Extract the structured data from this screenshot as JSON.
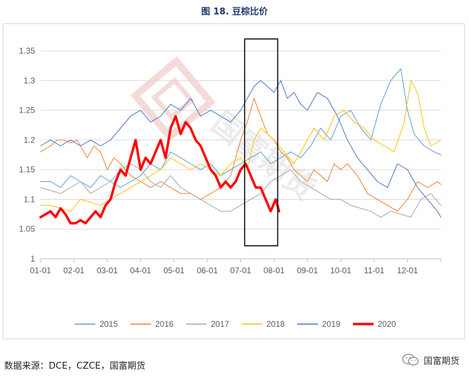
{
  "figure": {
    "title": "图 18.  豆棕比价",
    "source": "数据来源：DCE，CZCE，国富期货",
    "brand": "国富期货",
    "watermark": "国富期货"
  },
  "chart_data": {
    "type": "line",
    "title": "",
    "xlabel": "",
    "ylabel": "",
    "ylim": [
      1,
      1.35
    ],
    "yticks": [
      1,
      1.05,
      1.1,
      1.15,
      1.2,
      1.25,
      1.3,
      1.35
    ],
    "ytick_labels": [
      "1",
      "1.05",
      "1.1",
      "1.15",
      "1.2",
      "1.25",
      "1.3",
      "1.35"
    ],
    "x_unit": "month",
    "xlim": [
      0,
      12
    ],
    "xticks": [
      "01-01",
      "02-01",
      "03-01",
      "04-01",
      "05-01",
      "06-01",
      "07-01",
      "08-01",
      "09-01",
      "10-01",
      "11-01",
      "12-01"
    ],
    "grid": {
      "horizontal": true,
      "vertical": false
    },
    "legend_position": "bottom",
    "highlight_box": {
      "x_range": [
        6.12,
        7.11
      ],
      "y_range": [
        1.022,
        1.37
      ]
    },
    "series": [
      {
        "name": "2015",
        "color": "#5b9bd5",
        "width": 1,
        "x": [
          0.0,
          0.3,
          0.6,
          0.9,
          1.2,
          1.5,
          1.8,
          2.1,
          2.4,
          2.7,
          3.0,
          3.3,
          3.6,
          3.9,
          4.2,
          4.5,
          4.8,
          5.1,
          5.4,
          5.7,
          6.0,
          6.3,
          6.6,
          6.9,
          7.2,
          7.5,
          7.8,
          8.1,
          8.4,
          8.7,
          9.0,
          9.3,
          9.6,
          9.9,
          10.2,
          10.5,
          10.8,
          11.0,
          11.2,
          11.5,
          11.8,
          12.0
        ],
        "y": [
          1.13,
          1.13,
          1.12,
          1.14,
          1.13,
          1.12,
          1.14,
          1.13,
          1.12,
          1.13,
          1.14,
          1.16,
          1.15,
          1.18,
          1.17,
          1.16,
          1.15,
          1.16,
          1.14,
          1.15,
          1.16,
          1.17,
          1.18,
          1.16,
          1.17,
          1.18,
          1.17,
          1.19,
          1.22,
          1.2,
          1.24,
          1.25,
          1.22,
          1.2,
          1.26,
          1.3,
          1.32,
          1.25,
          1.21,
          1.19,
          1.18,
          1.175
        ]
      },
      {
        "name": "2016",
        "color": "#ed7d31",
        "width": 1,
        "x": [
          0.0,
          0.3,
          0.5,
          0.7,
          0.9,
          1.1,
          1.4,
          1.6,
          1.8,
          2.0,
          2.2,
          2.4,
          2.7,
          3.0,
          3.3,
          3.6,
          3.9,
          4.2,
          4.5,
          4.8,
          5.1,
          5.4,
          5.7,
          6.0,
          6.2,
          6.4,
          6.6,
          6.8,
          7.0,
          7.2,
          7.4,
          7.6,
          7.8,
          8.0,
          8.2,
          8.4,
          8.6,
          8.8,
          9.0,
          9.2,
          9.5,
          9.8,
          10.1,
          10.4,
          10.7,
          11.0,
          11.3,
          11.6,
          11.9,
          12.0
        ],
        "y": [
          1.18,
          1.19,
          1.2,
          1.2,
          1.195,
          1.2,
          1.17,
          1.19,
          1.18,
          1.15,
          1.17,
          1.16,
          1.14,
          1.13,
          1.12,
          1.13,
          1.12,
          1.11,
          1.11,
          1.1,
          1.11,
          1.12,
          1.14,
          1.2,
          1.23,
          1.27,
          1.24,
          1.21,
          1.2,
          1.18,
          1.17,
          1.15,
          1.14,
          1.13,
          1.15,
          1.14,
          1.13,
          1.16,
          1.15,
          1.16,
          1.14,
          1.11,
          1.1,
          1.09,
          1.08,
          1.1,
          1.13,
          1.12,
          1.13,
          1.125
        ]
      },
      {
        "name": "2017",
        "color": "#a5a5a5",
        "width": 1,
        "x": [
          0.0,
          0.3,
          0.6,
          0.9,
          1.2,
          1.5,
          1.8,
          2.1,
          2.4,
          2.7,
          3.0,
          3.3,
          3.6,
          3.9,
          4.2,
          4.5,
          4.8,
          5.1,
          5.4,
          5.7,
          6.0,
          6.3,
          6.6,
          6.9,
          7.2,
          7.5,
          7.8,
          8.1,
          8.4,
          8.7,
          9.0,
          9.3,
          9.6,
          9.9,
          10.2,
          10.5,
          10.8,
          11.1,
          11.4,
          11.7,
          12.0
        ],
        "y": [
          1.12,
          1.115,
          1.11,
          1.12,
          1.13,
          1.11,
          1.12,
          1.13,
          1.15,
          1.16,
          1.15,
          1.13,
          1.12,
          1.14,
          1.12,
          1.11,
          1.1,
          1.09,
          1.08,
          1.08,
          1.09,
          1.1,
          1.11,
          1.13,
          1.14,
          1.15,
          1.13,
          1.12,
          1.11,
          1.1,
          1.1,
          1.09,
          1.085,
          1.08,
          1.07,
          1.08,
          1.075,
          1.07,
          1.1,
          1.11,
          1.09
        ]
      },
      {
        "name": "2018",
        "color": "#ffc000",
        "width": 1,
        "x": [
          0.0,
          0.3,
          0.6,
          0.9,
          1.2,
          1.5,
          1.8,
          2.1,
          2.4,
          2.7,
          3.0,
          3.3,
          3.6,
          3.9,
          4.2,
          4.5,
          4.8,
          5.1,
          5.4,
          5.7,
          6.0,
          6.2,
          6.4,
          6.6,
          6.8,
          7.0,
          7.3,
          7.6,
          7.9,
          8.2,
          8.5,
          8.8,
          9.1,
          9.4,
          9.7,
          10.0,
          10.3,
          10.6,
          10.9,
          11.1,
          11.3,
          11.5,
          11.7,
          12.0
        ],
        "y": [
          1.09,
          1.09,
          1.085,
          1.08,
          1.1,
          1.095,
          1.09,
          1.1,
          1.11,
          1.12,
          1.13,
          1.14,
          1.15,
          1.17,
          1.16,
          1.15,
          1.16,
          1.15,
          1.14,
          1.16,
          1.17,
          1.15,
          1.2,
          1.22,
          1.21,
          1.2,
          1.18,
          1.16,
          1.19,
          1.22,
          1.2,
          1.24,
          1.25,
          1.23,
          1.22,
          1.2,
          1.19,
          1.18,
          1.23,
          1.3,
          1.28,
          1.22,
          1.19,
          1.2
        ]
      },
      {
        "name": "2019",
        "color": "#4472c4",
        "width": 1,
        "x": [
          0.0,
          0.3,
          0.6,
          0.9,
          1.2,
          1.5,
          1.8,
          2.1,
          2.4,
          2.7,
          3.0,
          3.3,
          3.6,
          3.9,
          4.2,
          4.5,
          4.8,
          5.1,
          5.4,
          5.7,
          6.0,
          6.2,
          6.4,
          6.6,
          6.8,
          7.0,
          7.2,
          7.4,
          7.6,
          7.8,
          8.0,
          8.3,
          8.6,
          8.9,
          9.2,
          9.5,
          9.8,
          10.1,
          10.4,
          10.7,
          11.0,
          11.3,
          11.6,
          11.9,
          12.0
        ],
        "y": [
          1.19,
          1.2,
          1.19,
          1.2,
          1.19,
          1.2,
          1.19,
          1.2,
          1.22,
          1.24,
          1.25,
          1.23,
          1.24,
          1.26,
          1.25,
          1.27,
          1.24,
          1.25,
          1.24,
          1.23,
          1.25,
          1.27,
          1.29,
          1.3,
          1.29,
          1.28,
          1.3,
          1.27,
          1.28,
          1.26,
          1.25,
          1.28,
          1.27,
          1.24,
          1.2,
          1.17,
          1.15,
          1.13,
          1.12,
          1.16,
          1.15,
          1.12,
          1.1,
          1.08,
          1.07
        ]
      },
      {
        "name": "2020",
        "color": "#ff0000",
        "width": 3.5,
        "x": [
          0.0,
          0.15,
          0.3,
          0.45,
          0.6,
          0.75,
          0.9,
          1.05,
          1.2,
          1.35,
          1.5,
          1.65,
          1.8,
          1.95,
          2.1,
          2.25,
          2.4,
          2.55,
          2.7,
          2.85,
          3.0,
          3.15,
          3.3,
          3.45,
          3.6,
          3.75,
          3.9,
          4.05,
          4.2,
          4.35,
          4.5,
          4.65,
          4.8,
          4.95,
          5.1,
          5.25,
          5.4,
          5.55,
          5.7,
          5.85,
          6.0,
          6.15,
          6.3,
          6.45,
          6.6,
          6.75,
          6.9,
          7.05,
          7.15
        ],
        "y": [
          1.07,
          1.075,
          1.08,
          1.07,
          1.085,
          1.075,
          1.06,
          1.06,
          1.065,
          1.06,
          1.07,
          1.08,
          1.07,
          1.09,
          1.1,
          1.13,
          1.15,
          1.14,
          1.17,
          1.2,
          1.15,
          1.17,
          1.16,
          1.18,
          1.2,
          1.17,
          1.22,
          1.24,
          1.21,
          1.23,
          1.22,
          1.2,
          1.19,
          1.17,
          1.15,
          1.14,
          1.12,
          1.13,
          1.12,
          1.13,
          1.15,
          1.16,
          1.14,
          1.12,
          1.12,
          1.1,
          1.08,
          1.1,
          1.08
        ]
      }
    ]
  }
}
